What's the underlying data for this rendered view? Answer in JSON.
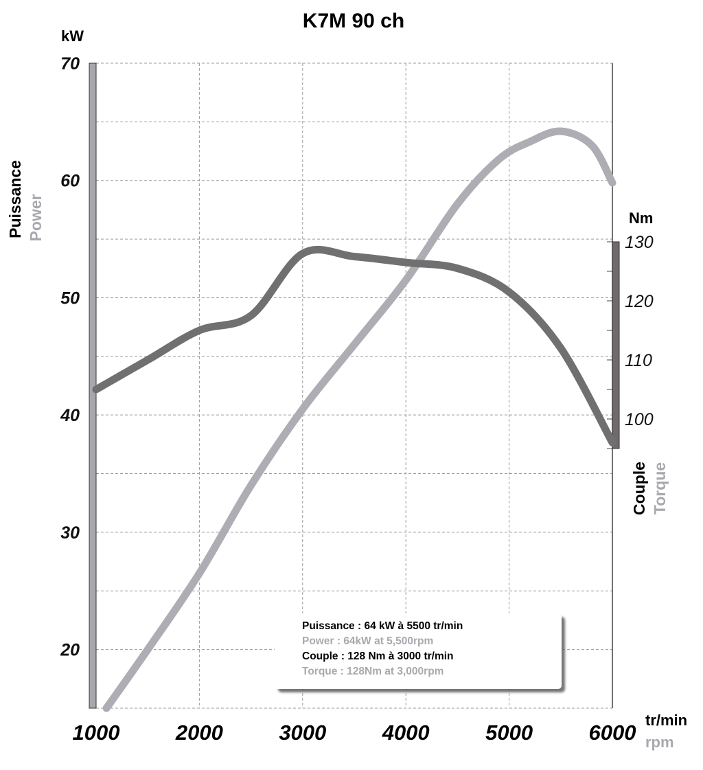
{
  "chart_data": {
    "type": "line",
    "title": "K7M 90 ch",
    "x": [
      1000,
      1500,
      2000,
      2500,
      3000,
      3500,
      4000,
      4500,
      5000,
      5500,
      6000
    ],
    "xlim": [
      1000,
      6000
    ],
    "x_ticks": [
      "1000",
      "2000",
      "3000",
      "4000",
      "5000",
      "6000"
    ],
    "xlabel": {
      "primary": "tr/min",
      "secondary": "rpm"
    },
    "left_axis": {
      "unit": "kW",
      "label_primary": "Puissance",
      "label_secondary": "Power",
      "ylim": [
        15,
        70
      ],
      "ticks": [
        "20",
        "30",
        "40",
        "50",
        "60",
        "70"
      ]
    },
    "right_axis": {
      "unit": "Nm",
      "label_primary": "Couple",
      "label_secondary": "Torque",
      "ylim": [
        95,
        130
      ],
      "ticks": [
        "100",
        "110",
        "120",
        "130"
      ]
    },
    "series": [
      {
        "key": "power",
        "axis": "left",
        "color": "#aeadb3",
        "x": [
          1100,
          1500,
          2000,
          2500,
          3000,
          3500,
          4000,
          4500,
          4900,
          5200,
          5500,
          5800,
          6000
        ],
        "values": [
          15,
          20,
          26.5,
          34,
          40.5,
          46,
          51.5,
          58,
          61.8,
          63.3,
          64.2,
          63,
          59.8
        ]
      },
      {
        "key": "torque",
        "axis": "right",
        "color": "#707070",
        "x": [
          1000,
          1500,
          2000,
          2500,
          3000,
          3500,
          4000,
          4500,
          5000,
          5500,
          6000
        ],
        "values": [
          105,
          110,
          115,
          117.5,
          128,
          127.5,
          126.5,
          125.5,
          121.5,
          112,
          96
        ]
      }
    ],
    "grid": true,
    "legend_box": {
      "line1": "Puissance : 64 kW à 5500 tr/min",
      "line2": "Power : 64kW at 5,500rpm",
      "line3": "Couple : 128 Nm à 3000 tr/min",
      "line4": "Torque : 128Nm at 3,000rpm"
    },
    "colors": {
      "primary_text": "#000000",
      "secondary_text": "#a9a8ae",
      "left_axis_bar": "#a8a7ac",
      "right_axis_bar": "#6f6a6c"
    }
  }
}
